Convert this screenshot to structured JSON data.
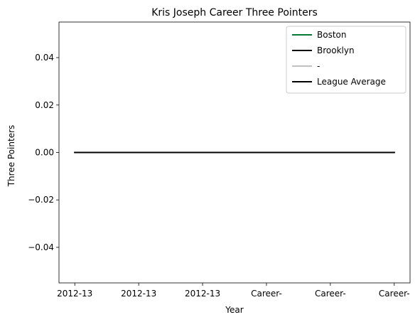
{
  "chart_data": {
    "type": "line",
    "title": "Kris Joseph Career Three Pointers",
    "xlabel": "Year",
    "ylabel": "Three Pointers",
    "categories": [
      "2012-13",
      "2012-13",
      "2012-13",
      "Career-",
      "Career-",
      "Career-"
    ],
    "ylim": [
      -0.055,
      0.055
    ],
    "yticks": [
      -0.04,
      -0.02,
      0.0,
      0.02,
      0.04
    ],
    "ytick_labels": [
      "−0.04",
      "−0.02",
      "0.00",
      "0.02",
      "0.04"
    ],
    "grid": false,
    "legend_position": "top-right",
    "series": [
      {
        "name": "Boston",
        "color": "#007a33",
        "values": [
          0,
          0,
          0,
          0,
          0,
          0
        ]
      },
      {
        "name": "Brooklyn",
        "color": "#000000",
        "values": [
          0,
          0,
          0,
          0,
          0,
          0
        ]
      },
      {
        "name": "-",
        "color": "#c0c0c0",
        "values": [
          0,
          0,
          0,
          0,
          0,
          0
        ]
      },
      {
        "name": "League Average",
        "color": "#000000",
        "values": [
          0,
          0,
          0,
          0,
          0,
          0
        ]
      }
    ]
  }
}
